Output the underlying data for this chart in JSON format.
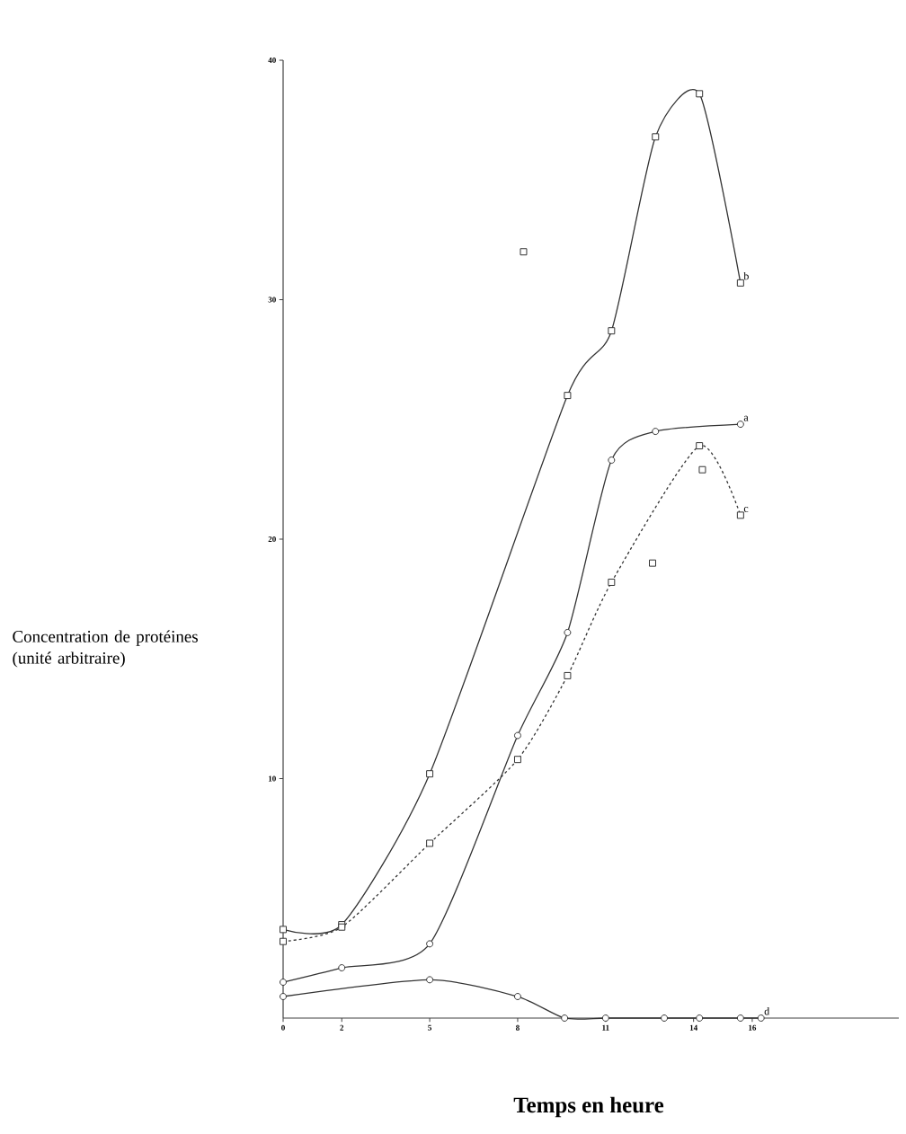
{
  "chart_data": {
    "type": "line",
    "xlabel": "Temps en heure",
    "ylabel": "Concentration de protéines (unité arbitraire)",
    "xlim": [
      0,
      21
    ],
    "ylim": [
      0,
      40
    ],
    "xticks": [
      0,
      2,
      5,
      8,
      11,
      14,
      16
    ],
    "yticks": [
      10,
      20,
      30,
      40
    ],
    "grid": false,
    "series": [
      {
        "name": "a",
        "color": "#333333",
        "marker": "circle",
        "line_style": "solid",
        "x": [
          0,
          2,
          5,
          8,
          9.7,
          11.2,
          12.7,
          15.6
        ],
        "values": [
          1.5,
          2.1,
          3.1,
          11.8,
          16.1,
          23.3,
          24.5,
          24.8
        ]
      },
      {
        "name": "b",
        "color": "#333333",
        "marker": "square",
        "line_style": "solid",
        "x": [
          0,
          2,
          5,
          9.7,
          11.2,
          12.7,
          14.2,
          15.6
        ],
        "values": [
          3.7,
          3.9,
          10.2,
          26.0,
          28.7,
          36.8,
          38.6,
          30.7
        ]
      },
      {
        "name": "c",
        "color": "#333333",
        "marker": "square",
        "line_style": "dashed",
        "x": [
          0,
          2,
          5,
          8,
          9.7,
          11.2,
          14.2,
          15.6
        ],
        "values": [
          3.2,
          3.8,
          7.3,
          10.8,
          14.3,
          18.2,
          23.9,
          21.0
        ]
      },
      {
        "name": "d",
        "color": "#333333",
        "marker": "circle",
        "line_style": "solid",
        "x": [
          0,
          5,
          8,
          9.6,
          11,
          13,
          14.2,
          15.6,
          16.3
        ],
        "values": [
          0.9,
          1.6,
          0.9,
          0,
          0,
          0,
          0,
          0,
          0
        ]
      },
      {
        "type": "scatter",
        "color": "#333333",
        "marker": "square",
        "x": [
          8.2,
          12.6,
          14.3
        ],
        "values": [
          32.0,
          19.0,
          22.9
        ]
      }
    ]
  }
}
